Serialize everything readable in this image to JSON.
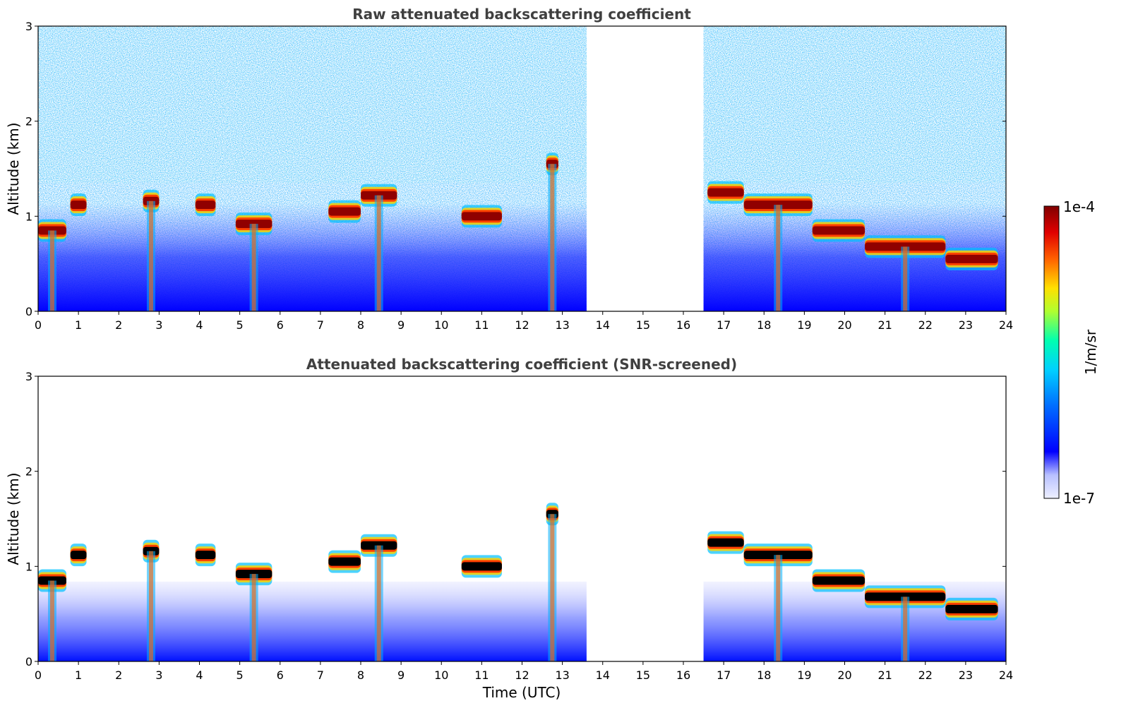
{
  "chart_data": [
    {
      "type": "heatmap",
      "title": "Raw attenuated backscattering coefficient",
      "xlabel": "",
      "ylabel": "Altitude (km)",
      "xlim": [
        0,
        24
      ],
      "ylim": [
        0,
        3
      ],
      "x_ticks": [
        0,
        1,
        2,
        3,
        4,
        5,
        6,
        7,
        8,
        9,
        10,
        11,
        12,
        13,
        14,
        15,
        16,
        17,
        18,
        19,
        20,
        21,
        22,
        23,
        24
      ],
      "y_ticks": [
        0,
        1,
        2,
        3
      ],
      "data_gap_hours": [
        13.6,
        16.5
      ],
      "cloud_layers": [
        {
          "t_start": 0.0,
          "t_end": 0.7,
          "alt_km": 0.85
        },
        {
          "t_start": 0.8,
          "t_end": 1.2,
          "alt_km": 1.12
        },
        {
          "t_start": 2.6,
          "t_end": 3.0,
          "alt_km": 1.16
        },
        {
          "t_start": 3.9,
          "t_end": 4.4,
          "alt_km": 1.12
        },
        {
          "t_start": 4.9,
          "t_end": 5.8,
          "alt_km": 0.92
        },
        {
          "t_start": 7.2,
          "t_end": 8.0,
          "alt_km": 1.05
        },
        {
          "t_start": 8.0,
          "t_end": 8.9,
          "alt_km": 1.22
        },
        {
          "t_start": 10.5,
          "t_end": 11.5,
          "alt_km": 1.0
        },
        {
          "t_start": 12.6,
          "t_end": 12.9,
          "alt_km": 1.55
        },
        {
          "t_start": 16.6,
          "t_end": 17.5,
          "alt_km": 1.25
        },
        {
          "t_start": 17.5,
          "t_end": 19.2,
          "alt_km": 1.12
        },
        {
          "t_start": 19.2,
          "t_end": 20.5,
          "alt_km": 0.85
        },
        {
          "t_start": 20.5,
          "t_end": 22.5,
          "alt_km": 0.68
        },
        {
          "t_start": 22.5,
          "t_end": 23.8,
          "alt_km": 0.55
        }
      ]
    },
    {
      "type": "heatmap",
      "title": "Attenuated backscattering coefficient (SNR-screened)",
      "xlabel": "Time (UTC)",
      "ylabel": "Altitude (km)",
      "xlim": [
        0,
        24
      ],
      "ylim": [
        0,
        3
      ],
      "x_ticks": [
        0,
        1,
        2,
        3,
        4,
        5,
        6,
        7,
        8,
        9,
        10,
        11,
        12,
        13,
        14,
        15,
        16,
        17,
        18,
        19,
        20,
        21,
        22,
        23,
        24
      ],
      "y_ticks": [
        0,
        1,
        2,
        3
      ],
      "data_gap_hours": [
        13.6,
        16.5
      ]
    }
  ],
  "colorbar": {
    "label": "1/m/sr",
    "max_label": "1e-4",
    "min_label": "1e-7",
    "colormap": [
      "#eef0ff",
      "#0000ff",
      "#00a0ff",
      "#00ffd0",
      "#aaff40",
      "#ffe000",
      "#ff6000",
      "#e00000",
      "#800000"
    ]
  }
}
